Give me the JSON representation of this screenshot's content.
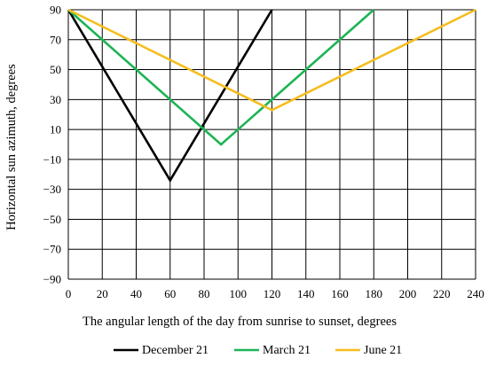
{
  "chart_data": {
    "type": "line",
    "title": "",
    "xlabel": "The angular length of the day from sunrise to sunset, degrees",
    "ylabel": "Horizontal sun azimuth, degrees",
    "xlim": [
      0,
      240
    ],
    "ylim": [
      -90,
      90
    ],
    "x_ticks": [
      0,
      20,
      40,
      60,
      80,
      100,
      120,
      140,
      160,
      180,
      200,
      220,
      240
    ],
    "y_ticks": [
      90,
      70,
      50,
      30,
      10,
      -10,
      -30,
      -50,
      -70,
      -90
    ],
    "x_tick_labels": [
      "0",
      "20",
      "40",
      "60",
      "80",
      "100",
      "120",
      "140",
      "160",
      "180",
      "200",
      "220",
      "240"
    ],
    "y_tick_labels": [
      "90",
      "70",
      "50",
      "30",
      "10",
      "−10",
      "−30",
      "−50",
      "−70",
      "−90"
    ],
    "grid": true,
    "legend_position": "bottom",
    "series": [
      {
        "name": "December 21",
        "color": "#000000",
        "x": [
          0,
          60,
          120
        ],
        "y": [
          90,
          -24,
          90
        ]
      },
      {
        "name": "March 21",
        "color": "#1db454",
        "x": [
          0,
          90,
          180
        ],
        "y": [
          90,
          0,
          90
        ]
      },
      {
        "name": "June 21",
        "color": "#f5bd1f",
        "x": [
          0,
          120,
          240
        ],
        "y": [
          90,
          23,
          90
        ]
      }
    ]
  }
}
